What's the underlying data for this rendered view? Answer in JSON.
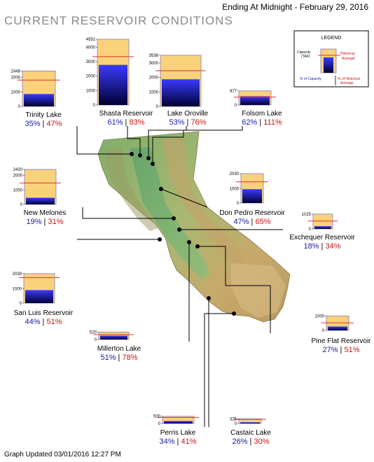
{
  "header": {
    "title": "CURRENT RESERVOIR CONDITIONS",
    "date": "Ending At Midnight - February 29, 2016"
  },
  "footer": {
    "updated": "Graph Updated 03/01/2016 12:27 PM"
  },
  "legend": {
    "title": "LEGEND",
    "capacity_label_1": "Capacity",
    "capacity_label_2": "(TAF)",
    "historical_1": "Historical",
    "historical_2": "Average",
    "pct_capacity": "% of Capacity",
    "pct_hist_1": "% of Historical",
    "pct_hist_2": "Average"
  },
  "colors": {
    "capacity_fill": "#f9d27b",
    "storage_top": "#3a3aff",
    "storage_bottom": "#000033",
    "historical_line": "#e03030",
    "pct_capacity_text": "#1a1aa8",
    "pct_historical_text": "#cc1111"
  },
  "chart_data": {
    "type": "bar",
    "title": "CURRENT RESERVOIR CONDITIONS",
    "unit": "TAF",
    "reservoirs": [
      {
        "name": "Trinity Lake",
        "capacity": 2448,
        "ticks": [
          0,
          1000,
          2000,
          2448
        ],
        "pct_capacity": 35,
        "pct_historical": 47
      },
      {
        "name": "Shasta Reservoir",
        "capacity": 4552,
        "ticks": [
          0,
          1000,
          2000,
          3000,
          4000,
          4552
        ],
        "pct_capacity": 61,
        "pct_historical": 83
      },
      {
        "name": "Lake Oroville",
        "capacity": 3538,
        "ticks": [
          0,
          1000,
          2000,
          3000,
          3538
        ],
        "pct_capacity": 53,
        "pct_historical": 76
      },
      {
        "name": "Folsom Lake",
        "capacity": 977,
        "ticks": [
          0,
          977
        ],
        "pct_capacity": 62,
        "pct_historical": 111
      },
      {
        "name": "New Melones",
        "capacity": 2420,
        "ticks": [
          0,
          1000,
          2000,
          2420
        ],
        "pct_capacity": 19,
        "pct_historical": 31
      },
      {
        "name": "Don Pedro Reservoir",
        "capacity": 2030,
        "ticks": [
          0,
          1000,
          2030
        ],
        "pct_capacity": 47,
        "pct_historical": 65
      },
      {
        "name": "Exchequer Reservoir",
        "capacity": 1025,
        "ticks": [
          0,
          1025
        ],
        "pct_capacity": 18,
        "pct_historical": 34
      },
      {
        "name": "San Luis Reservoir",
        "capacity": 2039,
        "ticks": [
          0,
          1000,
          2039
        ],
        "pct_capacity": 44,
        "pct_historical": 51
      },
      {
        "name": "Millerton Lake",
        "capacity": 520,
        "ticks": [
          0,
          520
        ],
        "pct_capacity": 51,
        "pct_historical": 78
      },
      {
        "name": "Pine Flat Reservoir",
        "capacity": 1000,
        "ticks": [
          0,
          1000
        ],
        "pct_capacity": 27,
        "pct_historical": 51
      },
      {
        "name": "Perris Lake",
        "capacity": 500,
        "ticks": [
          0,
          500
        ],
        "pct_capacity": 34,
        "pct_historical": 41
      },
      {
        "name": "Castaic Lake",
        "capacity": 325,
        "ticks": [
          0,
          325
        ],
        "pct_capacity": 26,
        "pct_historical": 30
      }
    ]
  }
}
